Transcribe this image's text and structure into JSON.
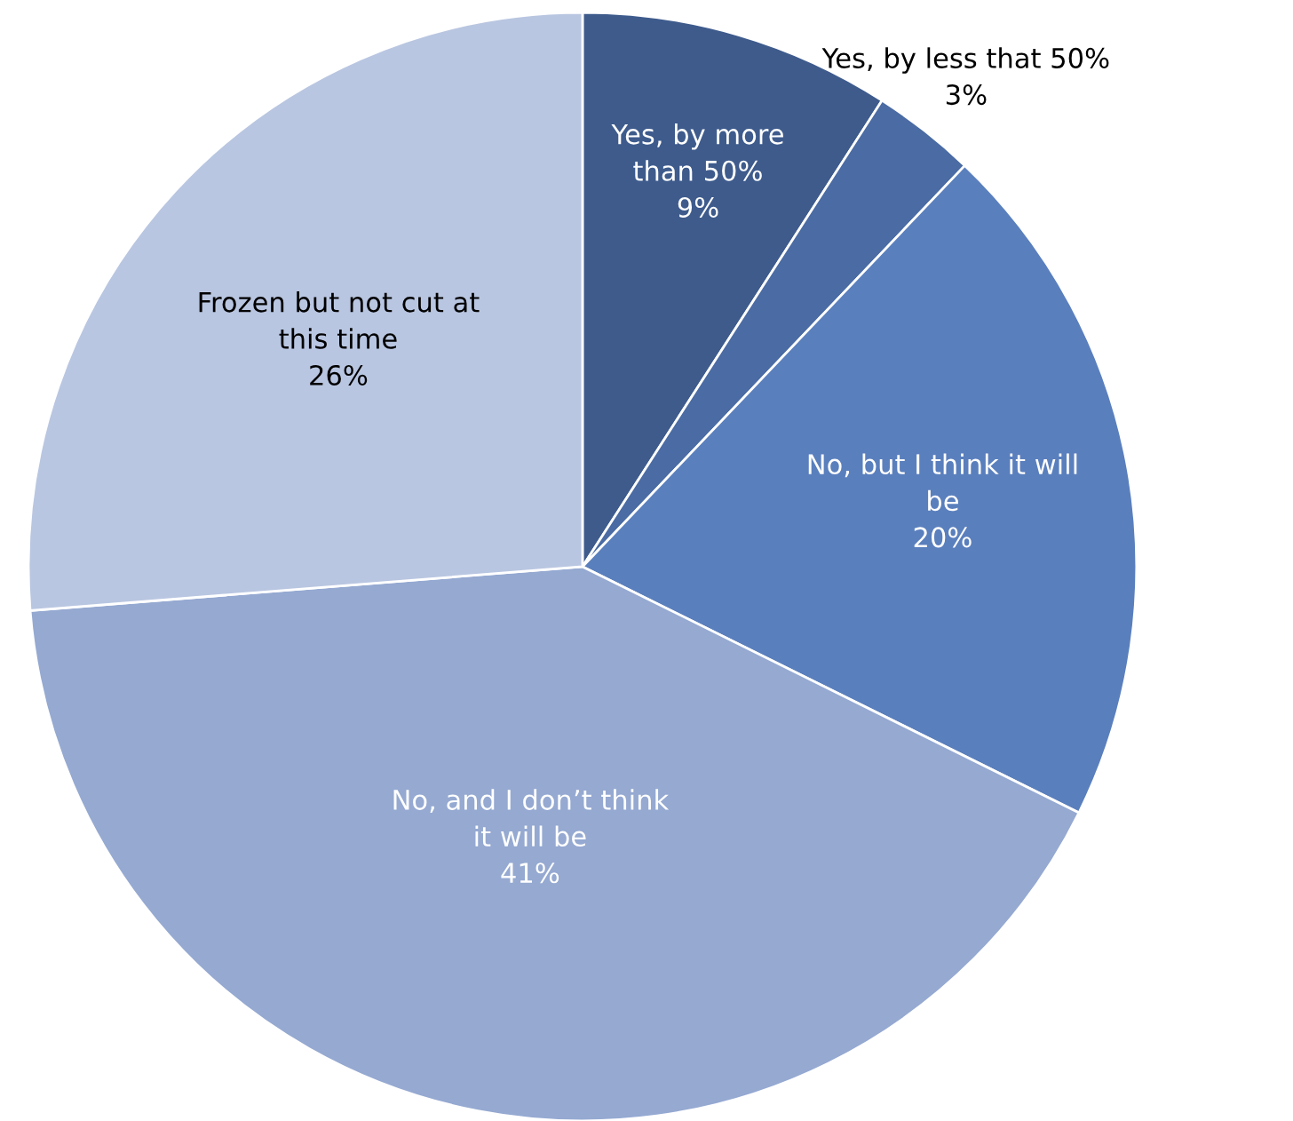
{
  "chart_data": {
    "type": "pie",
    "categories": [
      "Yes, by more than 50%",
      "Yes, by less that 50%",
      "No, but I think it will be",
      "No, and I don’t think it will be",
      "Frozen but not cut at this time"
    ],
    "values": [
      9,
      3,
      20,
      41,
      26
    ],
    "colors": [
      "#3e5b8c",
      "#4a6ba3",
      "#5a7fbd",
      "#95a9d1",
      "#b9c6e1"
    ],
    "value_labels": [
      "9%",
      "3%",
      "20%",
      "41%",
      "26%"
    ]
  }
}
